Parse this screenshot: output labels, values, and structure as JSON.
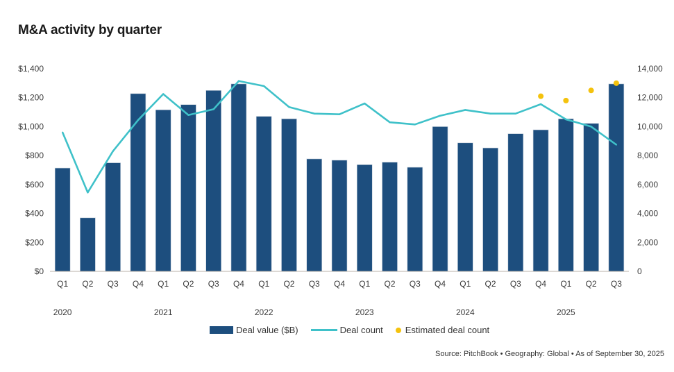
{
  "title": "M&A activity by quarter",
  "source": "Source: PitchBook  •  Geography: Global  •  As of September 30, 2025",
  "colors": {
    "bar": "#1d4e7e",
    "line": "#3fc1c9",
    "dot": "#f4c20d",
    "axis": "#b8b0a8"
  },
  "chart_data": {
    "type": "bar",
    "title": "M&A activity by quarter",
    "categories": [
      "Q1",
      "Q2",
      "Q3",
      "Q4",
      "Q1",
      "Q2",
      "Q3",
      "Q4",
      "Q1",
      "Q2",
      "Q3",
      "Q4",
      "Q1",
      "Q2",
      "Q3",
      "Q4",
      "Q1",
      "Q2",
      "Q3",
      "Q4",
      "Q1",
      "Q2",
      "Q3"
    ],
    "years": [
      {
        "label": "2020",
        "start_index": 0
      },
      {
        "label": "2021",
        "start_index": 4
      },
      {
        "label": "2022",
        "start_index": 8
      },
      {
        "label": "2023",
        "start_index": 12
      },
      {
        "label": "2024",
        "start_index": 16
      },
      {
        "label": "2025",
        "start_index": 20
      }
    ],
    "series": [
      {
        "name": "Deal value ($B)",
        "type": "bar",
        "axis": "left",
        "values": [
          714,
          370,
          750,
          1228,
          1116,
          1152,
          1250,
          1295,
          1071,
          1054,
          777,
          768,
          737,
          754,
          719,
          1000,
          888,
          853,
          951,
          978,
          1054,
          1022,
          1295
        ]
      },
      {
        "name": "Deal count",
        "type": "line",
        "axis": "right",
        "values": [
          9600,
          5450,
          8300,
          10450,
          12250,
          10800,
          11200,
          13150,
          12800,
          11350,
          10900,
          10850,
          11600,
          10300,
          10150,
          10750,
          11150,
          10900,
          10900,
          11550,
          10500,
          10000,
          8750
        ]
      },
      {
        "name": "Estimated deal count",
        "type": "scatter",
        "axis": "right",
        "values": [
          null,
          null,
          null,
          null,
          null,
          null,
          null,
          null,
          null,
          null,
          null,
          null,
          null,
          null,
          null,
          null,
          null,
          null,
          null,
          12100,
          11800,
          12500,
          13000
        ]
      }
    ],
    "left_axis": {
      "ticks": [
        "$0",
        "$200",
        "$400",
        "$600",
        "$800",
        "$1,000",
        "$1,200",
        "$1,400"
      ],
      "ylim": [
        0,
        1400
      ]
    },
    "right_axis": {
      "ticks": [
        "0",
        "2,000",
        "4,000",
        "6,000",
        "8,000",
        "10,000",
        "12,000",
        "14,000"
      ],
      "ylim": [
        0,
        14000
      ]
    },
    "xlabel": "",
    "ylabel": "",
    "grid": false,
    "legend": {
      "position": "bottom",
      "entries": [
        "Deal value ($B)",
        "Deal count",
        "Estimated deal count"
      ]
    }
  }
}
